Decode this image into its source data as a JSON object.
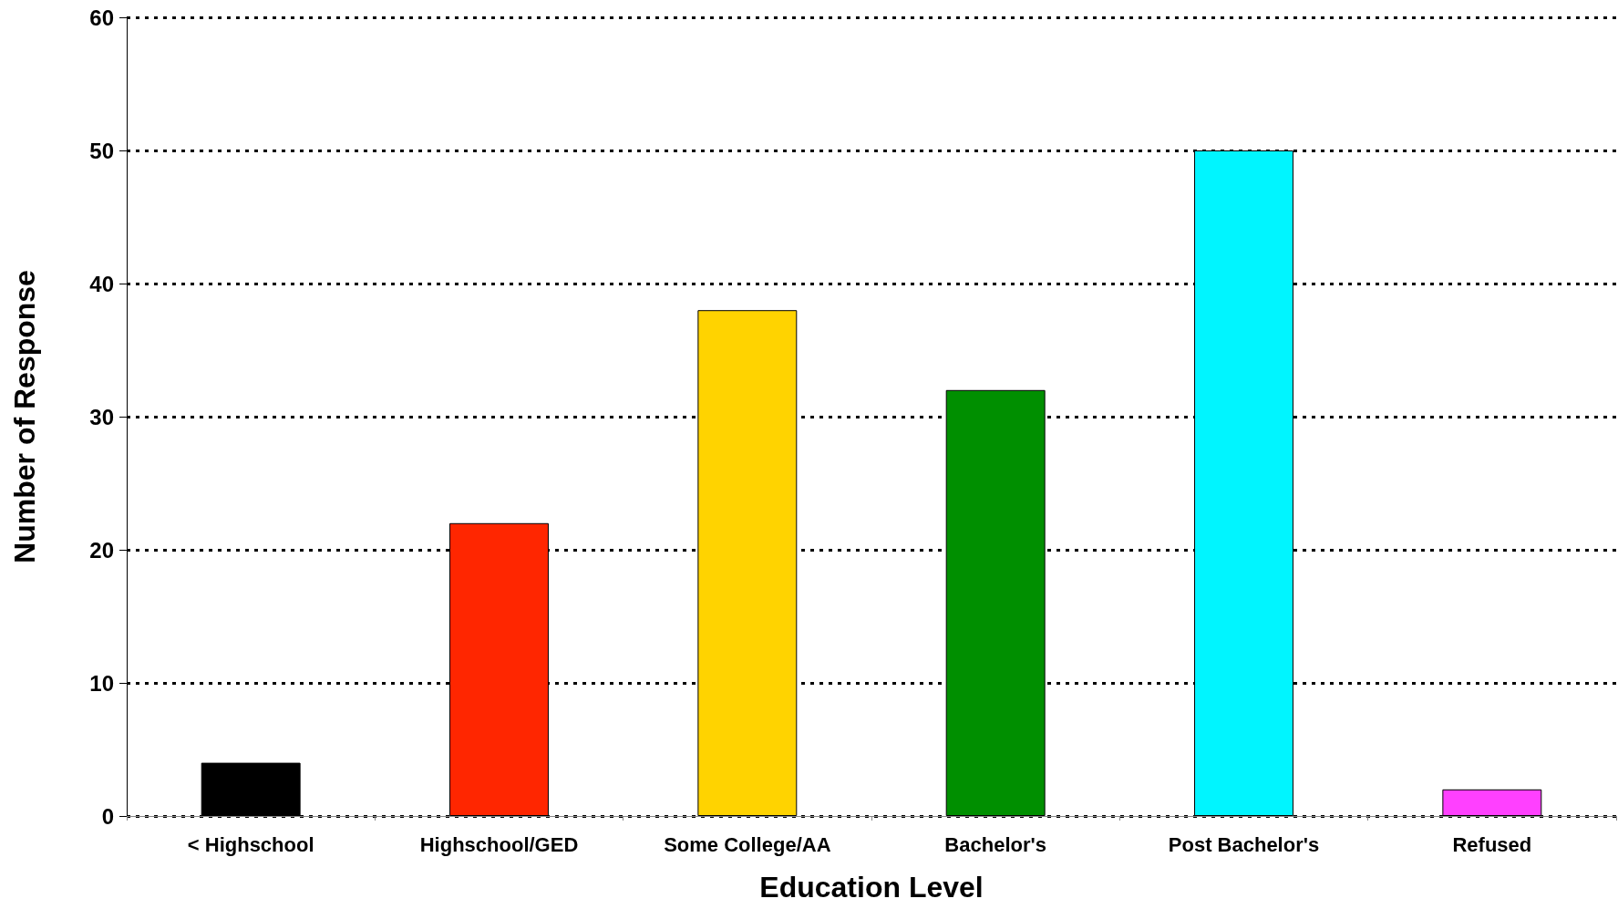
{
  "chart_data": {
    "type": "bar",
    "xlabel": "Education Level",
    "ylabel": "Number of Response",
    "categories": [
      "< Highschool",
      "Highschool/GED",
      "Some College/AA",
      "Bachelor's",
      "Post Bachelor's",
      "Refused"
    ],
    "values": [
      4,
      22,
      38,
      32,
      50,
      2
    ],
    "colors": [
      "#000000",
      "#ff2600",
      "#ffd300",
      "#008f00",
      "#00f5ff",
      "#ff40ff"
    ],
    "ylim": [
      0,
      60
    ],
    "yticks": [
      0,
      10,
      20,
      30,
      40,
      50,
      60
    ],
    "grid": "y"
  }
}
